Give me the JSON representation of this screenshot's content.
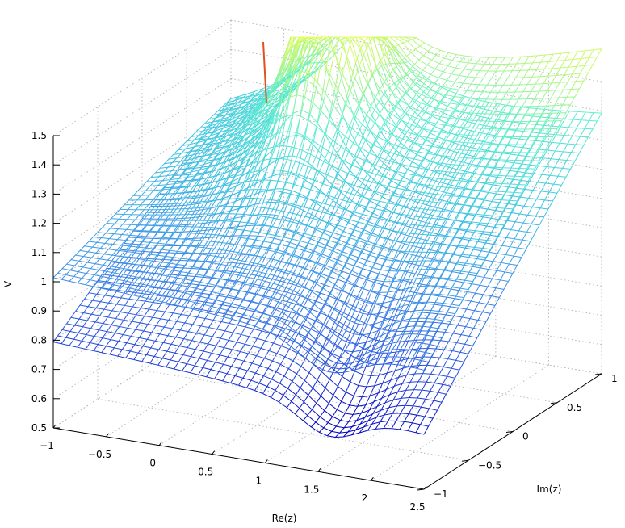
{
  "chart_data": {
    "type": "surface-mesh",
    "xlabel": "Re(z)",
    "ylabel": "Im(z)",
    "zlabel": "V",
    "xlim": [
      -1,
      2.5
    ],
    "ylim": [
      -1,
      1
    ],
    "zlim": [
      0.5,
      1.5
    ],
    "x_ticks": [
      -1,
      -0.5,
      0,
      0.5,
      1,
      1.5,
      2,
      2.5
    ],
    "y_ticks": [
      -1,
      -0.5,
      0,
      0.5,
      1
    ],
    "z_ticks": [
      0.5,
      0.6,
      0.7,
      0.8,
      0.9,
      1,
      1.1,
      1.2,
      1.3,
      1.4,
      1.5
    ],
    "x_tick_labels": [
      "−1",
      "−0.5",
      "0",
      "0.5",
      "1",
      "1.5",
      "2",
      "2.5"
    ],
    "y_tick_labels": [
      "−1",
      "−0.5",
      "0",
      "0.5",
      "1"
    ],
    "z_tick_labels": [
      "0.5",
      "0.6",
      "0.7",
      "0.8",
      "0.9",
      "1",
      "1.1",
      "1.2",
      "1.3",
      "1.4",
      "1.5"
    ],
    "grid": true,
    "colormap": [
      "#0000c0",
      "#2a55e0",
      "#3f8fe8",
      "#40c8e0",
      "#60f0d0",
      "#c8f870",
      "#f0ff60"
    ],
    "singularity_color": "#e05020",
    "surfaces": [
      {
        "z_at_corner_re_min_im_min": 0.78,
        "z_at_corner_re_min_im_max": 1.2,
        "z_at_corner_re_max_im_min": 0.68,
        "z_at_corner_re_max_im_max": 1.38,
        "pole_re": 0.3,
        "pole_im": 0.6
      },
      {
        "z_at_corner_re_min_im_min": 1.0,
        "z_at_corner_re_min_im_max": 1.2,
        "z_at_corner_re_max_im_min": 0.9,
        "z_at_corner_re_max_im_max": 1.6,
        "pole_re": 0.3,
        "pole_im": 0.6
      }
    ]
  }
}
